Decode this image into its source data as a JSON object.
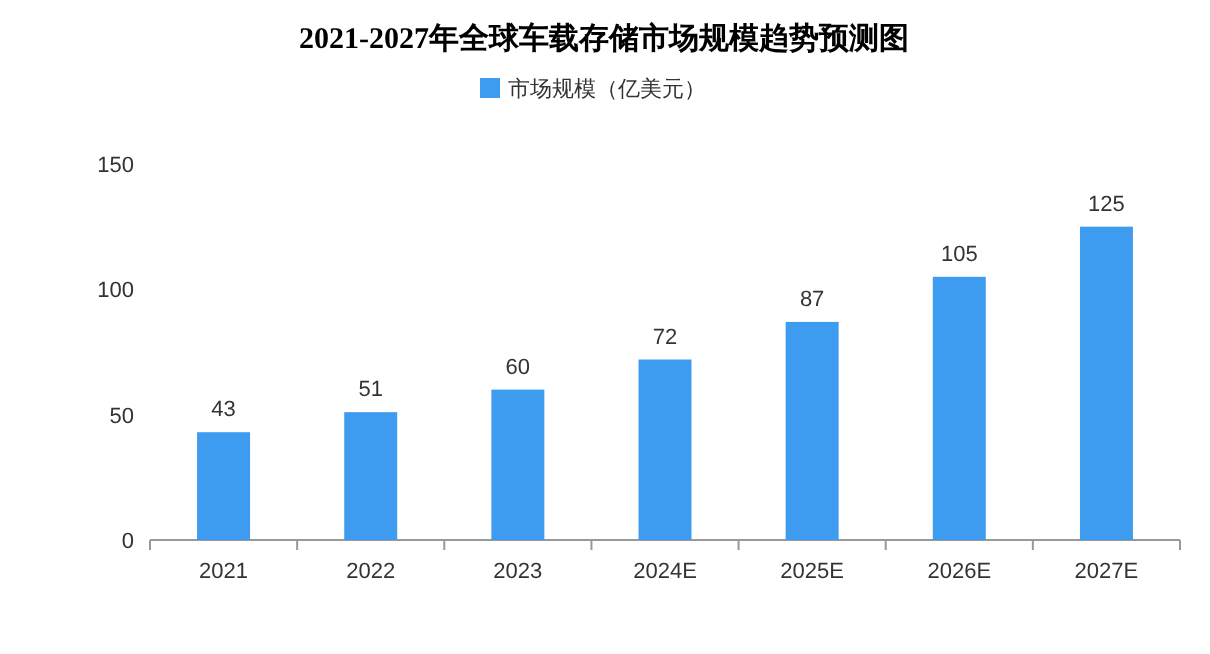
{
  "chart_data": {
    "type": "bar",
    "title": "2021-2027年全球车载存储市场规模趋势预测图",
    "categories": [
      "2021",
      "2022",
      "2023",
      "2024E",
      "2025E",
      "2026E",
      "2027E"
    ],
    "series": [
      {
        "name": "市场规模（亿美元）",
        "color": "#3d9cf0",
        "values": [
          43,
          51,
          60,
          72,
          87,
          105,
          125
        ]
      }
    ],
    "ylim": [
      0,
      150
    ],
    "yticks": [
      0,
      50,
      100,
      150
    ],
    "data_labels": true,
    "legend": "top",
    "grid": false
  }
}
